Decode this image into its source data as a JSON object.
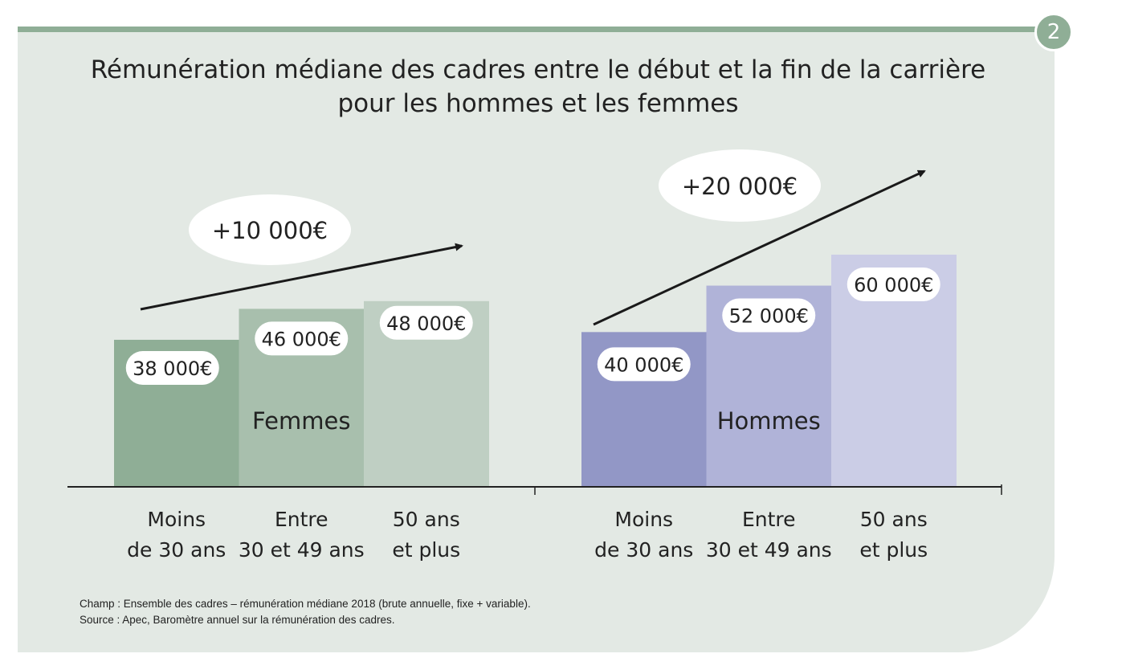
{
  "badge": "2",
  "title_line1": "Rémunération médiane des cadres entre le début et la fin de la carrière",
  "title_line2": "pour les hommes et les femmes",
  "notes": {
    "champ": "Champ : Ensemble des cadres – rémunération médiane 2018 (brute annuelle, fixe + variable).",
    "source": "Source : Apec, Baromètre annuel sur la rémunération des cadres."
  },
  "chart_data": {
    "type": "bar",
    "categories": [
      "Moins de 30 ans",
      "Entre 30 et 49 ans",
      "50 ans et plus"
    ],
    "series": [
      {
        "name": "Femmes",
        "values": [
          38000,
          46000,
          48000
        ],
        "value_labels": [
          "38 000€",
          "46 000€",
          "48 000€"
        ],
        "colors": [
          "#8fae96",
          "#a8bfad",
          "#bfcfc3"
        ],
        "increase_label": "+10 000€"
      },
      {
        "name": "Hommes",
        "values": [
          40000,
          52000,
          60000
        ],
        "value_labels": [
          "40 000€",
          "52 000€",
          "60 000€"
        ],
        "colors": [
          "#9297c6",
          "#b0b3d8",
          "#cbcde6"
        ],
        "increase_label": "+20 000€"
      }
    ],
    "category_labels": [
      [
        "Moins",
        "de 30 ans"
      ],
      [
        "Entre",
        "30 et 49 ans"
      ],
      [
        "50 ans",
        "et plus"
      ]
    ]
  }
}
